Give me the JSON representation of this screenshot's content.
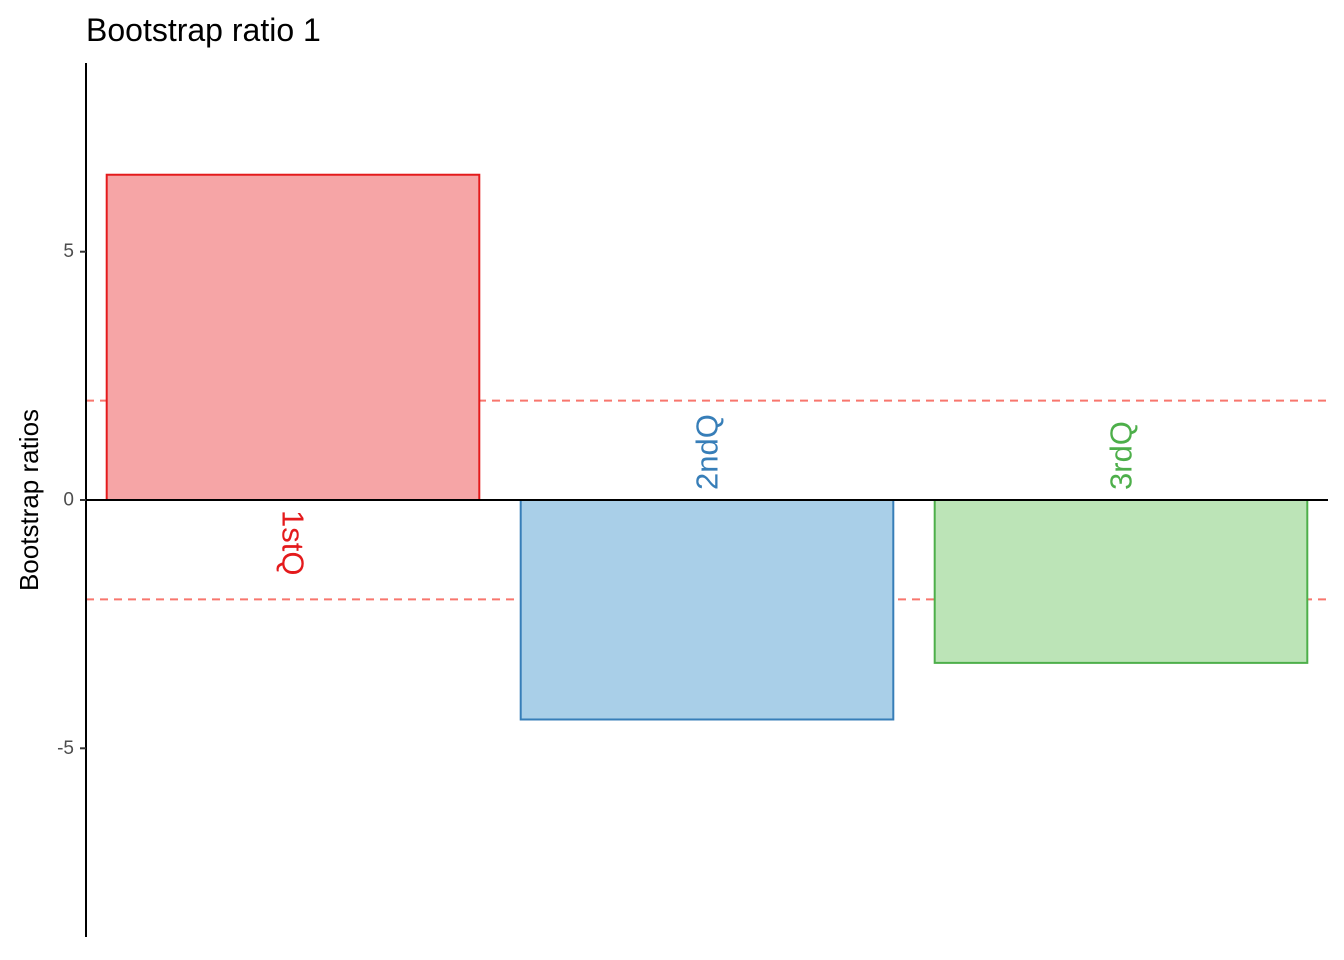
{
  "chart_data": {
    "type": "bar",
    "title": "Bootstrap ratio 1",
    "xlabel": "",
    "ylabel": "Bootstrap ratios",
    "categories": [
      "1stQ",
      "2ndQ",
      "3rdQ"
    ],
    "values": [
      6.55,
      -4.42,
      -3.28
    ],
    "ylim": [
      -8.8,
      8.8
    ],
    "yticks": [
      -5,
      0,
      5
    ],
    "ytick_labels": [
      "-5",
      "0",
      "5"
    ],
    "threshold_lines": [
      2,
      -2
    ],
    "threshold_color": "#F8766D",
    "zero_line": true,
    "grid": false,
    "legend": "none",
    "bar_colors": {
      "fill": [
        "#F6A5A6",
        "#A9CFE8",
        "#BCE4B7"
      ],
      "stroke": [
        "#E41A1C",
        "#377EB8",
        "#4DAF4A"
      ]
    }
  }
}
